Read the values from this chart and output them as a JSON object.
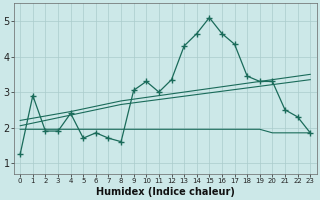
{
  "title": "",
  "xlabel": "Humidex (Indice chaleur)",
  "background_color": "#cce8e8",
  "grid_color": "#aacccc",
  "line_color": "#1a6b5a",
  "xlim": [
    -0.5,
    23.5
  ],
  "ylim": [
    0.7,
    5.5
  ],
  "xtick_labels": [
    "0",
    "1",
    "2",
    "3",
    "4",
    "5",
    "6",
    "7",
    "8",
    "9",
    "10",
    "11",
    "12",
    "13",
    "14",
    "15",
    "16",
    "17",
    "18",
    "19",
    "20",
    "21",
    "22",
    "23"
  ],
  "yticks": [
    1,
    2,
    3,
    4,
    5
  ],
  "series1_x": [
    0,
    1,
    2,
    3,
    4,
    5,
    6,
    7,
    8,
    9,
    10,
    11,
    12,
    13,
    14,
    15,
    16,
    17,
    18,
    19,
    20,
    21,
    22,
    23
  ],
  "series1_y": [
    1.25,
    2.9,
    1.9,
    1.9,
    2.4,
    1.7,
    1.85,
    1.7,
    1.6,
    3.05,
    3.3,
    3.0,
    3.35,
    4.3,
    4.65,
    5.1,
    4.65,
    4.35,
    3.45,
    3.3,
    3.3,
    2.5,
    2.3,
    1.85
  ],
  "series2_x": [
    0,
    19,
    20,
    23
  ],
  "series2_y": [
    1.95,
    1.95,
    1.85,
    1.85
  ],
  "series3_x": [
    0,
    4,
    8,
    23
  ],
  "series3_y": [
    2.05,
    2.35,
    2.65,
    3.35
  ],
  "series4_x": [
    0,
    4,
    8,
    23
  ],
  "series4_y": [
    2.2,
    2.45,
    2.75,
    3.5
  ]
}
